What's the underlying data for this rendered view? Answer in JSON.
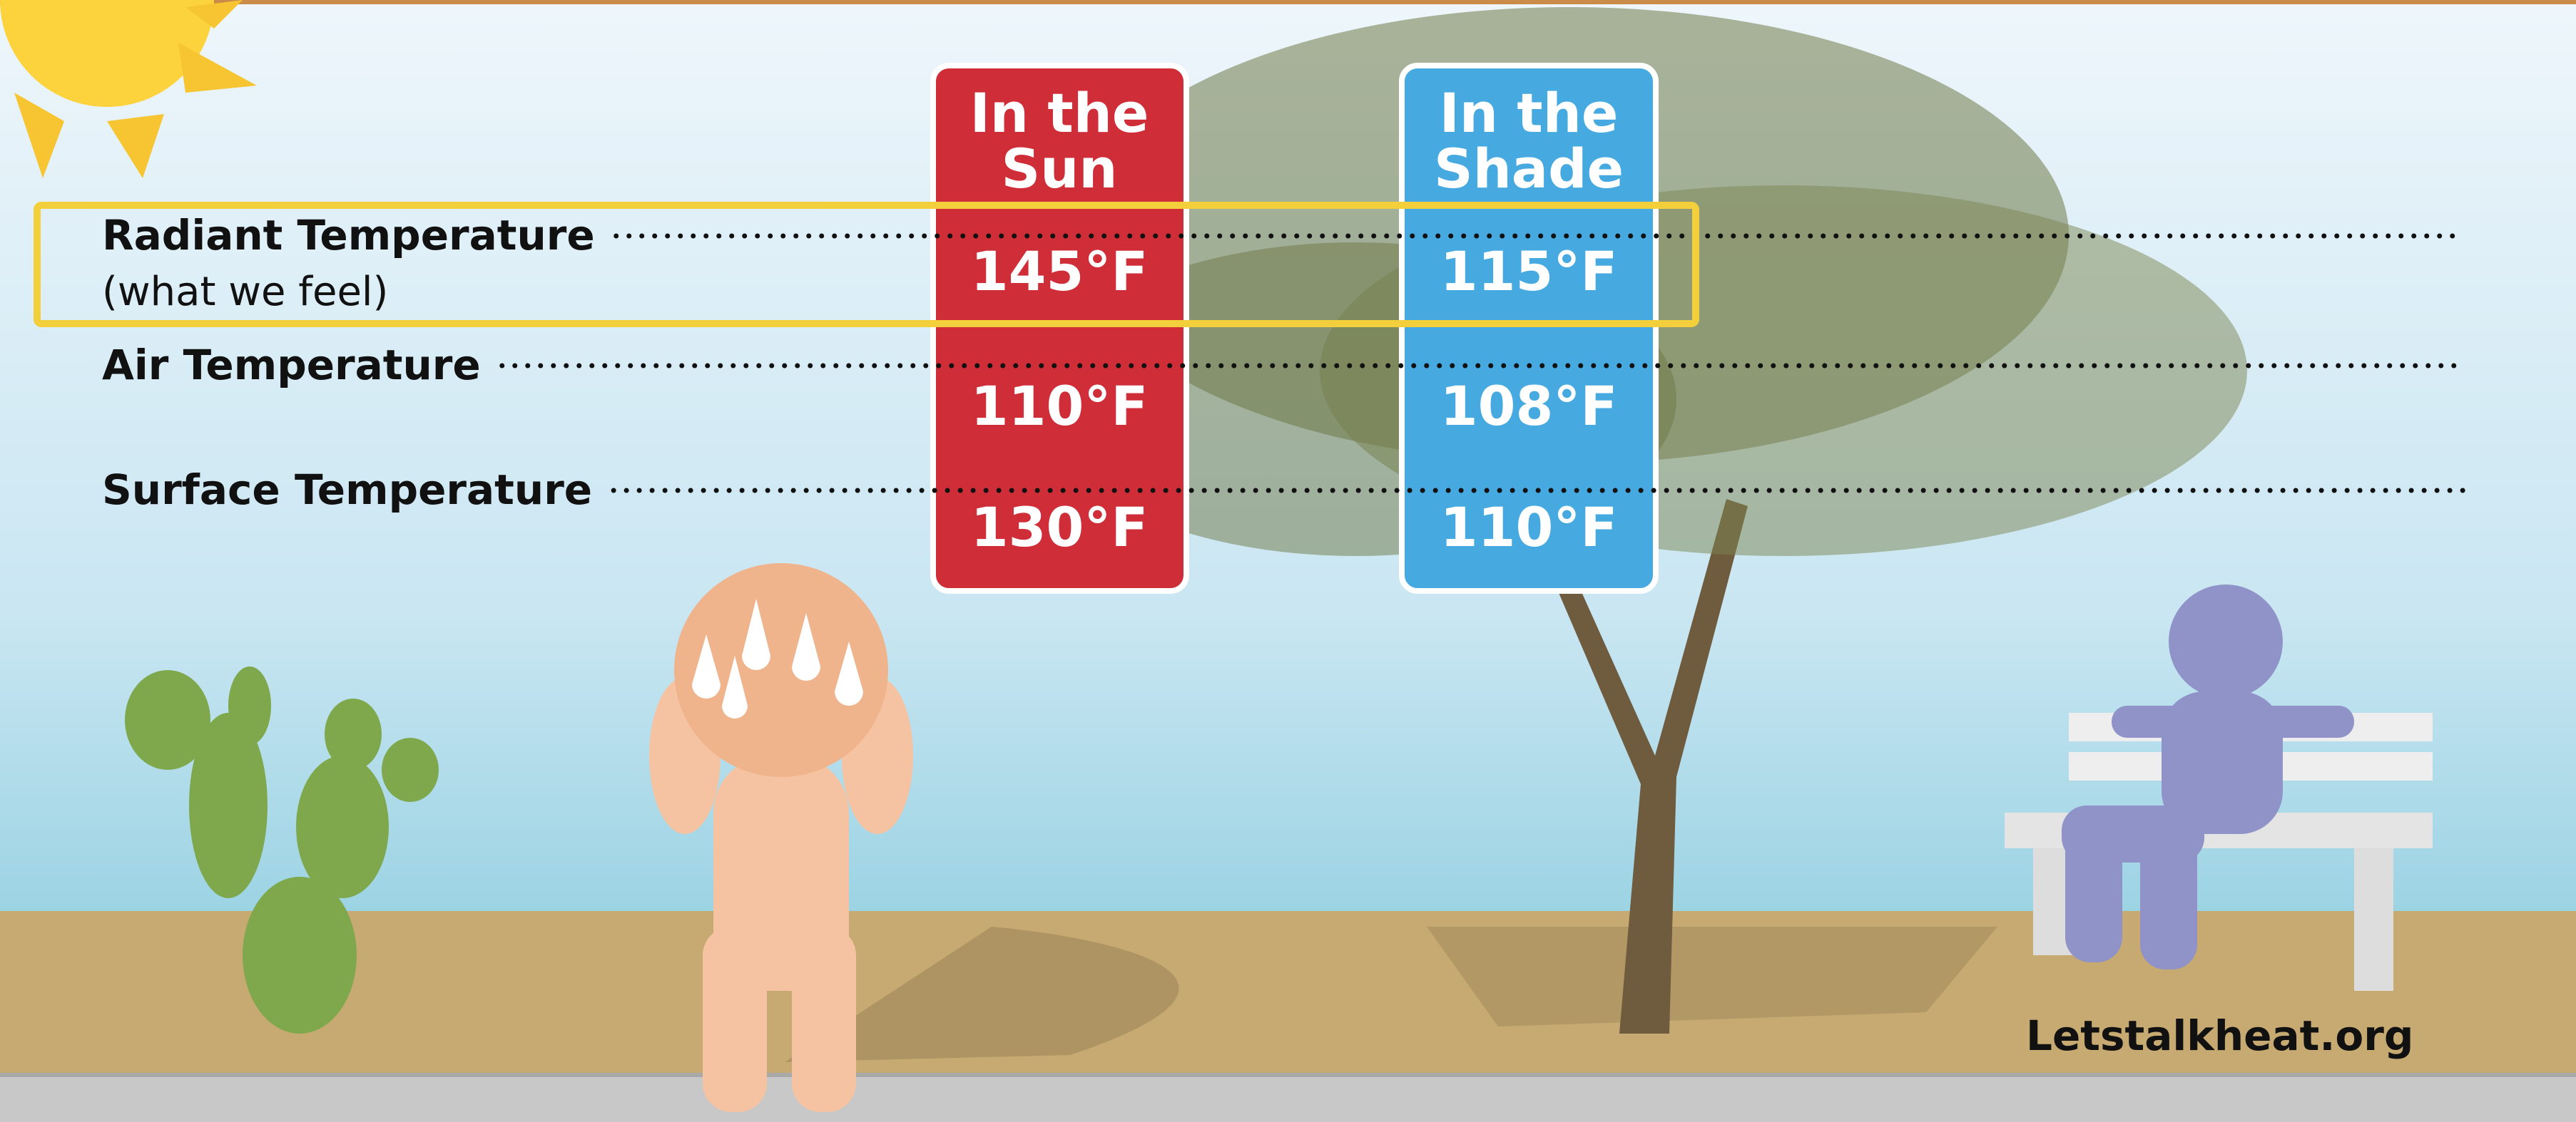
{
  "columns": [
    {
      "title_lines": [
        "In the",
        "Sun"
      ],
      "values": [
        "145°F",
        "110°F",
        "130°F"
      ]
    },
    {
      "title_lines": [
        "In the",
        "Shade"
      ],
      "values": [
        "115°F",
        "108°F",
        "110°F"
      ]
    }
  ],
  "rows": [
    {
      "label": "Radiant Temperature",
      "note": "(what we feel)"
    },
    {
      "label": "Air Temperature"
    },
    {
      "label": "Surface Temperature"
    }
  ],
  "footer": "Letstalkheat.org"
}
